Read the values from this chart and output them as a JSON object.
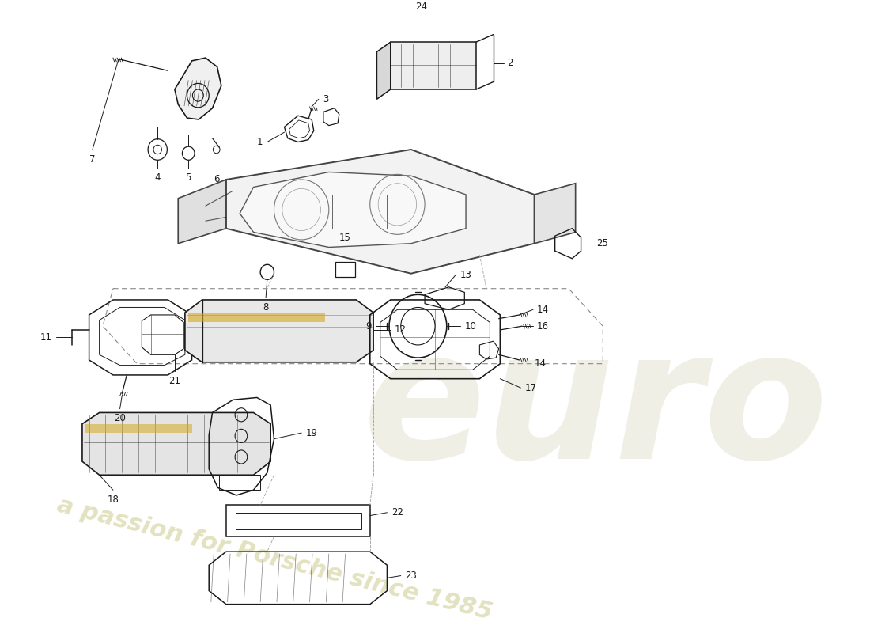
{
  "bg": "#ffffff",
  "lc": "#1a1a1a",
  "lw": 1.0,
  "wm1_color": "#b8b870",
  "wm2_color": "#c0c080",
  "wm1_alpha": 0.28,
  "wm2_alpha": 0.22
}
